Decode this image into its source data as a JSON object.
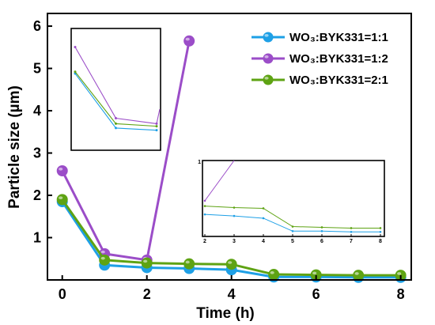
{
  "chart_data": {
    "type": "line",
    "xlabel": "Time (h)",
    "ylabel": "Particle size (µm)",
    "xlim": [
      -0.35,
      8.25
    ],
    "ylim": [
      0,
      6.3
    ],
    "xticks": [
      0,
      2,
      4,
      6,
      8
    ],
    "yticks": [
      1,
      2,
      3,
      4,
      5,
      6
    ],
    "legend_position": "top-right",
    "series": [
      {
        "name": "WO₃:BYK331=1:1",
        "color": "#1EA0E6",
        "x": [
          0,
          1,
          2,
          3,
          4,
          5,
          6,
          7,
          8
        ],
        "y": [
          1.85,
          0.35,
          0.29,
          0.27,
          0.24,
          0.07,
          0.07,
          0.06,
          0.06
        ]
      },
      {
        "name": "WO₃:BYK331=1:2",
        "color": "#9B4DC8",
        "x": [
          0,
          1,
          2,
          3
        ],
        "y": [
          2.58,
          0.62,
          0.47,
          5.65
        ]
      },
      {
        "name": "WO₃:BYK331=2:1",
        "color": "#5EA313",
        "x": [
          0,
          1,
          2,
          3,
          4,
          5,
          6,
          7,
          8
        ],
        "y": [
          1.9,
          0.47,
          0.4,
          0.38,
          0.37,
          0.13,
          0.12,
          0.11,
          0.11
        ]
      }
    ],
    "inset_right": {
      "xlim": [
        2,
        8
      ],
      "ylim": [
        0,
        1
      ],
      "xticks": [
        2,
        3,
        4,
        5,
        6,
        7,
        8
      ],
      "ytick_labels": [
        "1"
      ]
    }
  }
}
